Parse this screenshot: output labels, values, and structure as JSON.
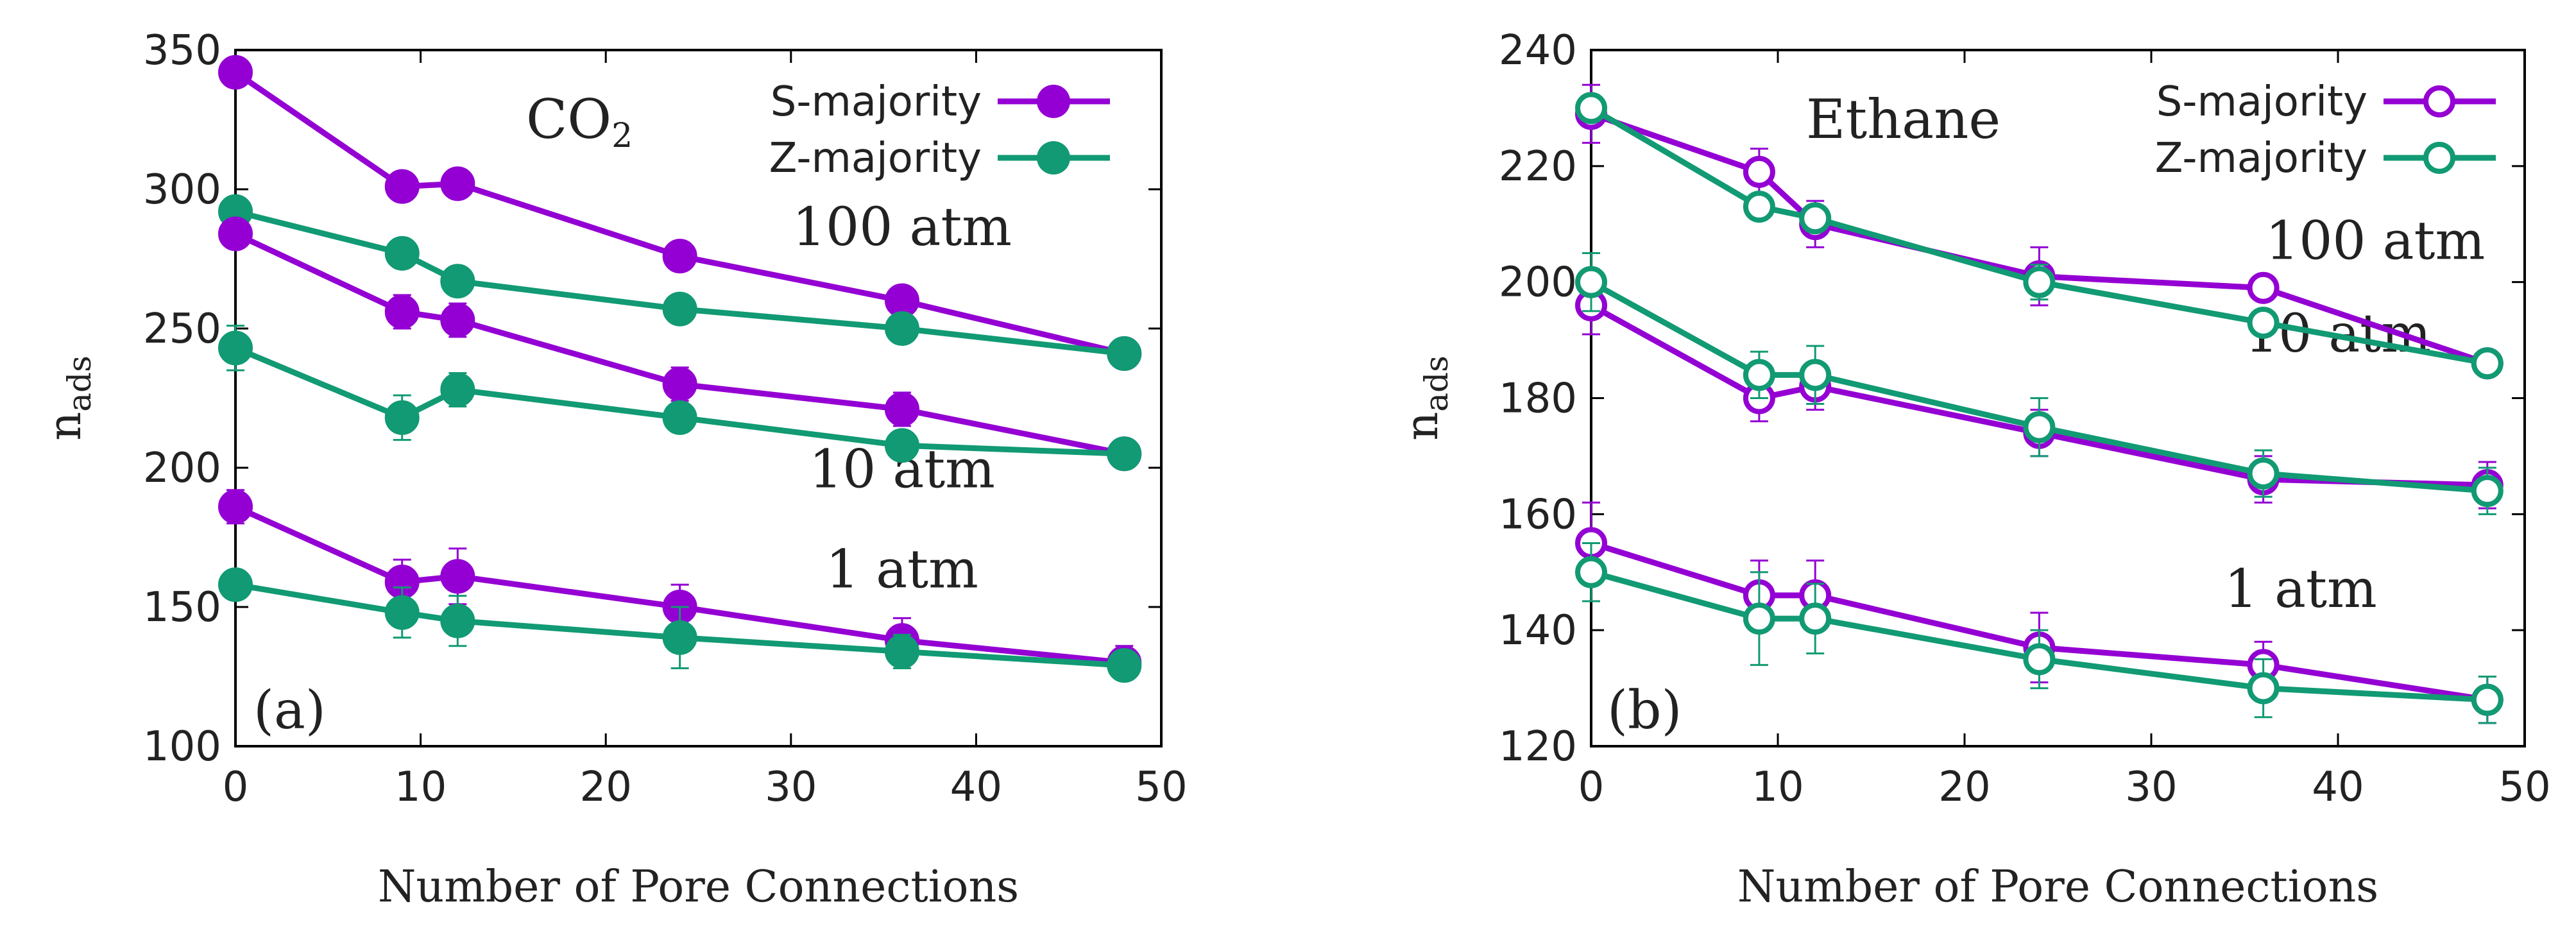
{
  "colors": {
    "s_majority": "#9400d3",
    "z_majority": "#119a73",
    "axis": "#000000"
  },
  "chart_data": [
    {
      "type": "line",
      "panel_label": "(a)",
      "annotation": "CO₂",
      "xlabel": "Number of Pore Connections",
      "ylabel_main": "n",
      "ylabel_sub": "ads",
      "xlim": [
        0,
        50
      ],
      "ylim": [
        100,
        350
      ],
      "xticks": [
        "0",
        "10",
        "20",
        "30",
        "40",
        "50"
      ],
      "yticks": [
        "100",
        "150",
        "200",
        "250",
        "300",
        "350"
      ],
      "legend": [
        {
          "label": "S-majority",
          "color": "#9400d3",
          "marker": "filled"
        },
        {
          "label": "Z-majority",
          "color": "#119a73",
          "marker": "filled"
        }
      ],
      "pressure_labels": [
        {
          "text": "100 atm",
          "x": 36,
          "y": 280
        },
        {
          "text": "10 atm",
          "x": 36,
          "y": 193
        },
        {
          "text": "1 atm",
          "x": 36,
          "y": 157
        }
      ],
      "x": [
        0,
        9,
        12,
        24,
        36,
        48
      ],
      "series": [
        {
          "group": "S-majority",
          "pressure": "100 atm",
          "values": [
            342,
            301,
            302,
            276,
            260,
            241
          ],
          "err": [
            4,
            3,
            3,
            3,
            3,
            3
          ]
        },
        {
          "group": "Z-majority",
          "pressure": "100 atm",
          "values": [
            292,
            277,
            267,
            257,
            250,
            241
          ],
          "err": [
            3,
            3,
            3,
            3,
            3,
            3
          ]
        },
        {
          "group": "S-majority",
          "pressure": "10 atm",
          "values": [
            284,
            256,
            253,
            230,
            221,
            205
          ],
          "err": [
            4,
            6,
            6,
            6,
            6,
            3
          ]
        },
        {
          "group": "Z-majority",
          "pressure": "10 atm",
          "values": [
            243,
            218,
            228,
            218,
            208,
            205
          ],
          "err": [
            8,
            8,
            6,
            5,
            4,
            3
          ]
        },
        {
          "group": "S-majority",
          "pressure": "1 atm",
          "values": [
            186,
            159,
            161,
            150,
            138,
            130
          ],
          "err": [
            6,
            8,
            10,
            8,
            8,
            6
          ]
        },
        {
          "group": "Z-majority",
          "pressure": "1 atm",
          "values": [
            158,
            148,
            145,
            139,
            134,
            129
          ],
          "err": [
            5,
            9,
            9,
            11,
            6,
            5
          ]
        }
      ]
    },
    {
      "type": "line",
      "panel_label": "(b)",
      "annotation": "Ethane",
      "xlabel": "Number of Pore Connections",
      "ylabel_main": "n",
      "ylabel_sub": "ads",
      "xlim": [
        0,
        50
      ],
      "ylim": [
        120,
        240
      ],
      "xticks": [
        "0",
        "10",
        "20",
        "30",
        "40",
        "50"
      ],
      "yticks": [
        "120",
        "140",
        "160",
        "180",
        "200",
        "220",
        "240"
      ],
      "legend": [
        {
          "label": "S-majority",
          "color": "#9400d3",
          "marker": "open"
        },
        {
          "label": "Z-majority",
          "color": "#119a73",
          "marker": "open"
        }
      ],
      "pressure_labels": [
        {
          "text": "100 atm",
          "x": 42,
          "y": 204
        },
        {
          "text": "10 atm",
          "x": 40,
          "y": 188
        },
        {
          "text": "1 atm",
          "x": 38,
          "y": 144
        }
      ],
      "x": [
        0,
        9,
        12,
        24,
        36,
        48
      ],
      "series": [
        {
          "group": "S-majority",
          "pressure": "100 atm",
          "values": [
            229,
            219,
            210,
            201,
            199,
            186
          ],
          "err": [
            5,
            4,
            4,
            5,
            2,
            1.5
          ]
        },
        {
          "group": "Z-majority",
          "pressure": "100 atm",
          "values": [
            230,
            213,
            211,
            200,
            193,
            186
          ],
          "err": [
            2,
            2,
            2,
            3,
            2,
            1.5
          ]
        },
        {
          "group": "S-majority",
          "pressure": "10 atm",
          "values": [
            196,
            180,
            182,
            174,
            166,
            165
          ],
          "err": [
            5,
            4,
            4,
            4,
            4,
            4
          ]
        },
        {
          "group": "Z-majority",
          "pressure": "10 atm",
          "values": [
            200,
            184,
            184,
            175,
            167,
            164
          ],
          "err": [
            5,
            4,
            5,
            5,
            4,
            4
          ]
        },
        {
          "group": "S-majority",
          "pressure": "1 atm",
          "values": [
            155,
            146,
            146,
            137,
            134,
            128
          ],
          "err": [
            7,
            6,
            6,
            6,
            4,
            4
          ]
        },
        {
          "group": "Z-majority",
          "pressure": "1 atm",
          "values": [
            150,
            142,
            142,
            135,
            130,
            128
          ],
          "err": [
            5,
            8,
            6,
            5,
            5,
            4
          ]
        }
      ]
    }
  ]
}
